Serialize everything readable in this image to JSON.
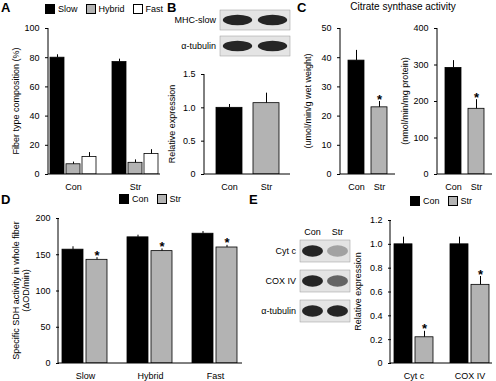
{
  "chart_data": [
    {
      "panel": "A",
      "type": "bar",
      "ylabel": "Fiber type composition (%)",
      "categories": [
        "Con",
        "Str"
      ],
      "series": [
        {
          "name": "Slow",
          "color": "#000000",
          "values": [
            80,
            77
          ],
          "errors": [
            2,
            2
          ]
        },
        {
          "name": "Hybrid",
          "color": "#b3b3b3",
          "values": [
            7,
            8
          ],
          "errors": [
            1.5,
            2
          ]
        },
        {
          "name": "Fast",
          "color": "#ffffff",
          "values": [
            12,
            14
          ],
          "errors": [
            3,
            3
          ]
        }
      ],
      "ylim": [
        0,
        100
      ],
      "yticks": [
        0,
        20,
        40,
        60,
        80,
        100
      ],
      "legend": "top"
    },
    {
      "panel": "B",
      "type": "bar",
      "ylabel": "Relative expression",
      "categories": [
        "Con",
        "Str"
      ],
      "values": [
        1,
        1.07
      ],
      "errors": [
        0.05,
        0.15
      ],
      "colors": [
        "#000000",
        "#b3b3b3"
      ],
      "ylim": [
        0,
        1.5
      ],
      "yticks": [
        0,
        0.5,
        {
          "value": 1,
          "label": "1.0"
        },
        1.5
      ]
    },
    {
      "panel": "C",
      "type": "bar",
      "title": "Citrate synthase activity",
      "ylabel": "(umol/min/g wet weight)",
      "categories": [
        "Con",
        "Str"
      ],
      "values": [
        39,
        23
      ],
      "errors": [
        3.5,
        2
      ],
      "colors": [
        "#000000",
        "#b3b3b3"
      ],
      "ylim": [
        0,
        50
      ],
      "yticks": [
        0,
        10,
        20,
        30,
        40,
        50
      ],
      "annotations": [
        {
          "category": "Str",
          "text": "*"
        }
      ]
    },
    {
      "panel": "C",
      "type": "bar",
      "ylabel": "(nmol/min/mg protein)",
      "categories": [
        "Con",
        "Str"
      ],
      "values": [
        292,
        180
      ],
      "errors": [
        20,
        25
      ],
      "colors": [
        "#000000",
        "#b3b3b3"
      ],
      "ylim": [
        0,
        400
      ],
      "yticks": [
        0,
        100,
        200,
        300,
        400
      ],
      "annotations": [
        {
          "category": "Str",
          "text": "*"
        }
      ]
    },
    {
      "panel": "D",
      "type": "bar",
      "ylabel": "Specific SDH activity in whole fiber (ΔOD/min)",
      "categories": [
        "Slow",
        "Hybrid",
        "Fast"
      ],
      "series": [
        {
          "name": "Con",
          "color": "#000000",
          "values": [
            157,
            174,
            179
          ],
          "errors": [
            4,
            3,
            3
          ]
        },
        {
          "name": "Str",
          "color": "#b3b3b3",
          "values": [
            143,
            155,
            160
          ],
          "errors": [
            3,
            3,
            3
          ]
        }
      ],
      "ylim": [
        0,
        200
      ],
      "yticks": [
        0,
        50,
        100,
        150,
        200
      ],
      "legend": "top",
      "annotations": [
        {
          "category": "Slow",
          "series": "Str",
          "text": "*"
        },
        {
          "category": "Hybrid",
          "series": "Str",
          "text": "*"
        },
        {
          "category": "Fast",
          "series": "Str",
          "text": "*"
        }
      ]
    },
    {
      "panel": "E",
      "type": "bar",
      "ylabel": "Relative expression",
      "categories": [
        "Cyt c",
        "COX IV"
      ],
      "series": [
        {
          "name": "Con",
          "color": "#000000",
          "values": [
            1,
            1
          ],
          "errors": [
            0.06,
            0.06
          ]
        },
        {
          "name": "Str",
          "color": "#b3b3b3",
          "values": [
            0.22,
            0.66
          ],
          "errors": [
            0.05,
            0.07
          ]
        }
      ],
      "ylim": [
        0,
        1.2
      ],
      "yticks": [
        0,
        0.2,
        0.4,
        0.6,
        0.8,
        {
          "value": 1,
          "label": "1.0"
        },
        1.2
      ],
      "legend": "top",
      "annotations": [
        {
          "category": "Cyt c",
          "series": "Str",
          "text": "*"
        },
        {
          "category": "COX IV",
          "series": "Str",
          "text": "*"
        }
      ]
    }
  ],
  "blots": [
    {
      "panel": "B",
      "rows": [
        "MHC-slow",
        "α-tubulin"
      ]
    },
    {
      "panel": "E",
      "lanes": [
        "Con",
        "Str"
      ],
      "rows": [
        "Cyt c",
        "COX IV",
        "α-tubulin"
      ]
    }
  ]
}
